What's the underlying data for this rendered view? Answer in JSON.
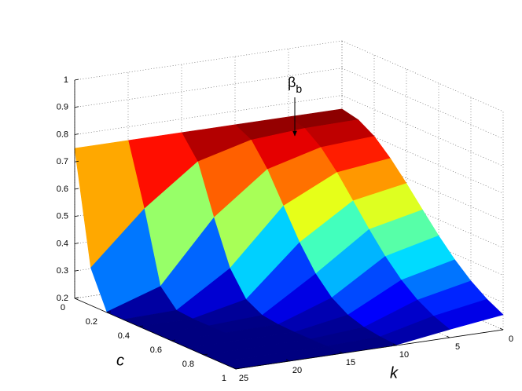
{
  "chart_data": {
    "type": "surface",
    "colormap": "jet",
    "xlabel": "c",
    "ylabel": "k",
    "annotation": {
      "text": "β",
      "subscript": "b"
    },
    "c": [
      0,
      0.1,
      0.2,
      0.3,
      0.4,
      0.5,
      0.6,
      0.7,
      0.8,
      0.9,
      1
    ],
    "k": [
      0,
      5,
      10,
      15,
      20,
      25
    ],
    "z": [
      [
        0.75,
        0.737,
        0.702,
        0.647,
        0.581,
        0.51,
        0.441,
        0.379,
        0.327,
        0.286,
        0.255
      ],
      [
        0.75,
        0.734,
        0.69,
        0.624,
        0.546,
        0.467,
        0.394,
        0.333,
        0.286,
        0.253,
        0.23
      ],
      [
        0.75,
        0.72,
        0.638,
        0.53,
        0.422,
        0.333,
        0.271,
        0.234,
        0.215,
        0.206,
        0.202
      ],
      [
        0.75,
        0.669,
        0.49,
        0.33,
        0.242,
        0.21,
        0.202,
        0.2,
        0.2,
        0.2,
        0.2
      ],
      [
        0.75,
        0.525,
        0.267,
        0.205,
        0.2,
        0.2,
        0.2,
        0.2,
        0.2,
        0.2,
        0.2
      ],
      [
        0.75,
        0.338,
        0.202,
        0.2,
        0.2,
        0.2,
        0.2,
        0.2,
        0.2,
        0.2,
        0.2
      ]
    ],
    "xlim": [
      0,
      1
    ],
    "xticks": [
      0,
      0.2,
      0.4,
      0.6,
      0.8,
      1
    ],
    "ylim": [
      0,
      25
    ],
    "yticks": [
      0,
      5,
      10,
      15,
      20,
      25
    ],
    "zlim": [
      0.2,
      1
    ],
    "zticks": [
      0.2,
      0.3,
      0.4,
      0.5,
      0.6,
      0.7,
      0.8,
      0.9,
      1
    ],
    "grid": true
  }
}
